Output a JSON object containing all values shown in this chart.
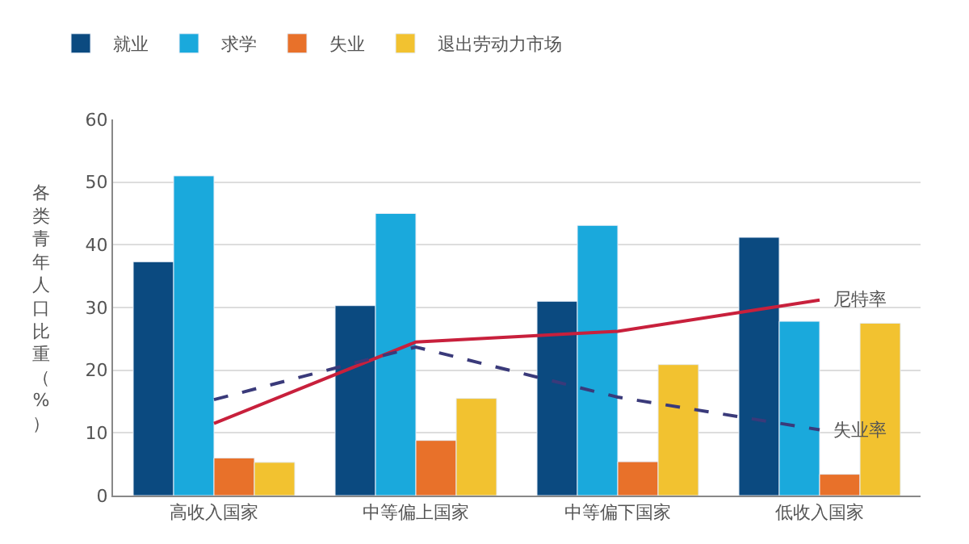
{
  "chart_data": {
    "type": "bar",
    "ylabel": "各类青年人口比重（%）",
    "categories": [
      "高收入国家",
      "中等偏上国家",
      "中等偏下国家",
      "低收入国家"
    ],
    "series": [
      {
        "name": "就业",
        "color": "#0b4a80",
        "values": [
          37.3,
          30.3,
          31.0,
          41.2
        ]
      },
      {
        "name": "求学",
        "color": "#1aa9dc",
        "values": [
          51.0,
          45.0,
          43.1,
          27.8
        ]
      },
      {
        "name": "失业",
        "color": "#e8712a",
        "values": [
          6.0,
          8.8,
          5.4,
          3.4
        ]
      },
      {
        "name": "退出劳动力市场",
        "color": "#f2c230",
        "values": [
          5.3,
          15.5,
          20.9,
          27.5
        ]
      },
      {
        "name": "尼特率",
        "type": "line",
        "color": "#c8203c",
        "line_style": "solid",
        "values": [
          11.5,
          24.5,
          26.2,
          31.2
        ]
      },
      {
        "name": "失业率",
        "type": "line",
        "color": "#3a3a7a",
        "line_style": "dashed",
        "values": [
          15.3,
          23.7,
          15.7,
          10.5
        ]
      }
    ],
    "ylim": [
      0,
      60
    ],
    "yticks": [
      0,
      10,
      20,
      30,
      40,
      50,
      60
    ],
    "grid": "y",
    "legend": "top left",
    "marker": "none"
  }
}
